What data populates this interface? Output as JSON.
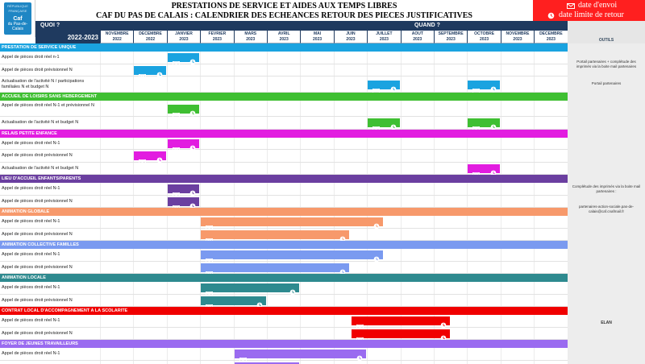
{
  "logo": {
    "line1": "RÉPUBLIQUE FRANÇAISE",
    "brand": "Caf",
    "region": "du Pas-de-Calais"
  },
  "header": {
    "title1": "PRESTATIONS DE SERVICE ET AIDES AUX TEMPS LIBRES",
    "title2": "CAF DU PAS DE CALAIS : CALENDRIER DES ECHEANCES RETOUR DES PIECES JUSTIFICATIVES",
    "quoi": "QUOI ?",
    "quand": "QUAND ?",
    "year": "2022-2023",
    "outils": "OUTILS"
  },
  "legend": {
    "send": "date d'envoi",
    "deadline": "date limite de retour",
    "color": "#ff1f1f"
  },
  "months": [
    {
      "m": "NOVEMBRE",
      "y": "2022"
    },
    {
      "m": "DECEMBRE",
      "y": "2022"
    },
    {
      "m": "JANVIER",
      "y": "2023"
    },
    {
      "m": "FEVRIER",
      "y": "2023"
    },
    {
      "m": "MARS",
      "y": "2023"
    },
    {
      "m": "AVRIL",
      "y": "2023"
    },
    {
      "m": "MAI",
      "y": "2023"
    },
    {
      "m": "JUIN",
      "y": "2023"
    },
    {
      "m": "JUILLET",
      "y": "2023"
    },
    {
      "m": "AOUT",
      "y": "2023"
    },
    {
      "m": "SEPTEMBRE",
      "y": "2023"
    },
    {
      "m": "OCTOBRE",
      "y": "2023"
    },
    {
      "m": "NOVEMBRE",
      "y": "2023"
    },
    {
      "m": "DECEMBRE",
      "y": "2023"
    }
  ],
  "sections": [
    {
      "title": "PRESTATION DE SERVICE UNIQUE",
      "color": "#1aa3e0",
      "rows": [
        {
          "label": "Appel de pièces droit réel n-1",
          "start": 2,
          "end": 3
        },
        {
          "label": "Appel de pièces droit prévisionnel N",
          "start": 1,
          "end": 2
        },
        {
          "label": "Actualisation de l'activité N / participations familiales N et budget N",
          "bars": [
            [
              8,
              9
            ],
            [
              11,
              12
            ]
          ]
        }
      ]
    },
    {
      "title": "ACCUEIL DE LOISIRS SANS HEBERGEMENT",
      "color": "#3fbf32",
      "rows": [
        {
          "label": "Appel de pièces droit réel N-1 et prévisionnel N",
          "start": 2,
          "end": 3
        },
        {
          "label": "Actualisation de l'activité N et budget N",
          "bars": [
            [
              8,
              9
            ],
            [
              11,
              12
            ]
          ]
        }
      ]
    },
    {
      "title": "RELAIS PETITE ENFANCE",
      "color": "#e21ce0",
      "rows": [
        {
          "label": "Appel de pièces droit réel N-1",
          "start": 2,
          "end": 3
        },
        {
          "label": "Appel de pièces droit prévisionnel N",
          "start": 1,
          "end": 2
        },
        {
          "label": "Actualisation de l'activité N et budget N",
          "bars": [
            [
              11,
              12
            ]
          ]
        }
      ]
    },
    {
      "title": "LIEU D'ACCUEIL ENFANTS/PARENTS",
      "color": "#6b3fa0",
      "rows": [
        {
          "label": "Appel de pièces droit réel N-1",
          "start": 2,
          "end": 3
        },
        {
          "label": "Appel de pièces droit prévisionnel N",
          "start": 2,
          "end": 3
        }
      ]
    },
    {
      "title": "ANIMATION GLOBALE",
      "color": "#f7996b",
      "rows": [
        {
          "label": "Appel de pièces droit réel N-1",
          "start": 3,
          "end": 8.5
        },
        {
          "label": "Appel de pièces droit prévisionnel N",
          "start": 3,
          "end": 7.5
        }
      ]
    },
    {
      "title": "ANIMATION COLLECTIVE FAMILLES",
      "color": "#7a9af0",
      "rows": [
        {
          "label": "Appel de pièces droit réel N-1",
          "start": 3,
          "end": 8.5
        },
        {
          "label": "Appel de pièces droit prévisionnel N",
          "start": 3,
          "end": 7.5
        }
      ]
    },
    {
      "title": "ANIMATION LOCALE",
      "color": "#2e8a8f",
      "rows": [
        {
          "label": "Appel de pièces droit réel N-1",
          "start": 3,
          "end": 6
        },
        {
          "label": "Appel de pièces droit prévisionnel N",
          "start": 3,
          "end": 5
        }
      ]
    },
    {
      "title": "CONTRAT LOCAL D'ACCOMPAGNEMENT A LA SCOLARITE",
      "color": "#f00000",
      "rows": [
        {
          "label": "Appel de pièces droit réel N-1",
          "start": 7.5,
          "end": 10.5
        },
        {
          "label": "Appel de pièces droit prévisionnel N",
          "start": 7.5,
          "end": 10.5
        }
      ]
    },
    {
      "title": "FOYER DE JEUNES TRAVAILLEURS",
      "color": "#9a6bf0",
      "rows": [
        {
          "label": "Appel de pièces droit réel N-1",
          "start": 4,
          "end": 8
        },
        {
          "label": "",
          "start": 4,
          "end": 6
        }
      ]
    }
  ],
  "outils": [
    {
      "text": "Portail partenaires + complétude des imprimés via la boite mail partenaires"
    },
    {
      "text": "Portail partenaires"
    },
    {
      "text": "Complétude des imprimés via la boite mail partenaires :"
    },
    {
      "text": "partenaires-action-sociale.pas-de-calais@caf.cnafmail.fr"
    },
    {
      "text": "ELAN"
    }
  ]
}
